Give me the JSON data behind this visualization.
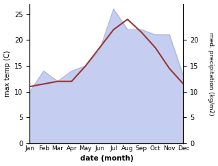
{
  "months": [
    "Jan",
    "Feb",
    "Mar",
    "Apr",
    "May",
    "Jun",
    "Jul",
    "Aug",
    "Sep",
    "Oct",
    "Nov",
    "Dec"
  ],
  "max_temp": [
    11.0,
    11.5,
    12.0,
    12.0,
    15.0,
    18.5,
    22.0,
    24.0,
    21.5,
    18.5,
    14.5,
    11.5
  ],
  "precipitation": [
    10.0,
    14.0,
    12.0,
    14.0,
    15.0,
    18.0,
    26.0,
    22.0,
    22.0,
    21.0,
    21.0,
    13.0
  ],
  "temp_color": "#993333",
  "precip_fill_color": "#c5cef0",
  "precip_line_color": "#aab5e0",
  "left_ylabel": "max temp (C)",
  "right_ylabel": "med. precipitation (kg/m2)",
  "xlabel": "date (month)",
  "left_ylim": [
    0,
    27
  ],
  "right_ylim": [
    0,
    27
  ],
  "left_yticks": [
    0,
    5,
    10,
    15,
    20,
    25
  ],
  "right_yticks": [
    0,
    5,
    10,
    15,
    20
  ],
  "bg_color": "#ffffff"
}
